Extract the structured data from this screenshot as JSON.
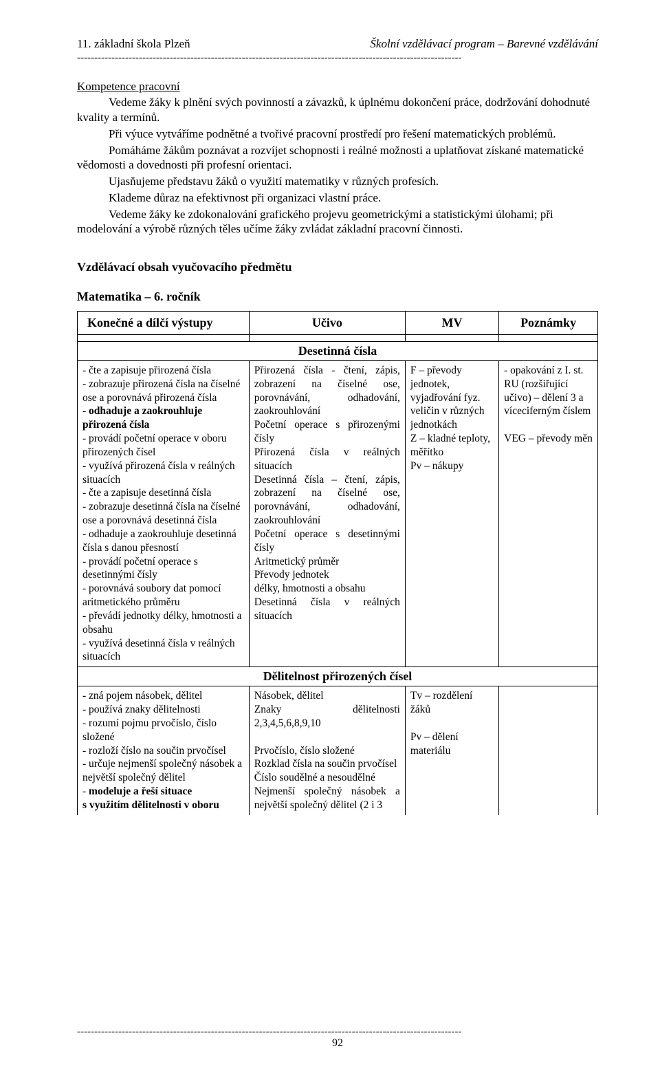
{
  "header": {
    "left": "11. základní škola Plzeň",
    "right": "Školní vzdělávací program – Barevné vzdělávání"
  },
  "dash_line": "----------------------------------------------------------------------------------------------------------------",
  "body": {
    "heading": "Kompetence pracovní",
    "p1": "Vedeme žáky k plnění svých povinností a závazků, k úplnému dokončení práce, dodržování dohodnuté kvality a termínů.",
    "p2": "Při výuce vytváříme podnětné a tvořivé pracovní prostředí pro řešení matematických problémů.",
    "p3": "Pomáháme žákům poznávat a rozvíjet schopnosti i reálné možnosti a uplatňovat získané matematické vědomosti a dovednosti při profesní orientaci.",
    "p4": "Ujasňujeme představu žáků o využití matematiky v různých profesích.",
    "p5": "Klademe důraz na efektivnost při organizaci vlastní práce.",
    "p6": "Vedeme žáky ke zdokonalování grafického projevu geometrickými a statistickými úlohami; při modelování a výrobě různých těles učíme žáky zvládat základní pracovní činnosti."
  },
  "section_title": "Vzdělávací obsah vyučovacího předmětu",
  "subject_title": "Matematika – 6. ročník",
  "table": {
    "headers": [
      "Konečné a dílčí výstupy",
      "Učivo",
      "MV",
      "Poznámky"
    ],
    "section1_title": "Desetinná čísla",
    "row1": {
      "col1": "- čte a zapisuje přirozená čísla\n- zobrazuje přirozená čísla na číselné ose a porovnává přirozená čísla\n- odhaduje a zaokrouhluje přirozená čísla\n- provádí početní operace v oboru přirozených čísel\n- využívá přirozená čísla v reálných situacích\n- čte a zapisuje desetinná čísla\n- zobrazuje desetinná čísla na číselné ose a porovnává desetinná čísla\n- odhaduje a zaokrouhluje desetinná čísla s danou přesností\n- provádí početní operace s desetinnými čísly\n- porovnává soubory dat pomocí aritmetického průměru\n- převádí jednotky délky, hmotnosti a obsahu\n- využívá desetinná čísla v reálných situacích",
      "col1_bold": [
        "- odhaduje a zaokrouhluje přirozená čísla"
      ],
      "col2": "Přirozená čísla - čtení, zápis, zobrazení na číselné ose, porovnávání, odhadování, zaokrouhlování\nPočetní operace s přirozenými čísly\nPřirozená čísla v reálných situacích\nDesetinná čísla – čtení, zápis, zobrazení na číselné ose, porovnávání, odhadování, zaokrouhlování\nPočetní operace s desetinnými  čísly\nAritmetický průměr\nPřevody jednotek\n délky, hmotnosti a obsahu\nDesetinná čísla v reálných situacích",
      "col3": "F – převody jednotek, vyjadřování fyz. veličin v různých jednotkách\nZ – kladné teploty, měřítko\nPv – nákupy",
      "col4": "- opakování z I. st.\nRU (rozšiřující učivo) – dělení 3 a víceciferným číslem\n\nVEG – převody měn"
    },
    "section2_title": "Dělitelnost přirozených čísel",
    "row2": {
      "col1": "- zná pojem násobek, dělitel\n- používá znaky dělitelnosti\n- rozumí pojmu prvočíslo, číslo složené\n- rozloží číslo na součin prvočísel\n- určuje nejmenší společný násobek a největší společný dělitel\n- modeluje a řeší situace s využitím dělitelnosti v oboru",
      "col1_bold": [
        "- modeluje a řeší situace s využitím dělitelnosti v oboru"
      ],
      "col2": "Násobek, dělitel\nZnaky dělitelnosti 2,3,4,5,6,8,9,10\n\nPrvočíslo, číslo složené\nRozklad čísla na součin prvočísel\nČíslo soudělné a nesoudělné\nNejmenší společný násobek a největší společný dělitel (2 i 3",
      "col3": "Tv – rozdělení žáků\n\nPv – dělení materiálu",
      "col4": ""
    }
  },
  "page_number": "92"
}
